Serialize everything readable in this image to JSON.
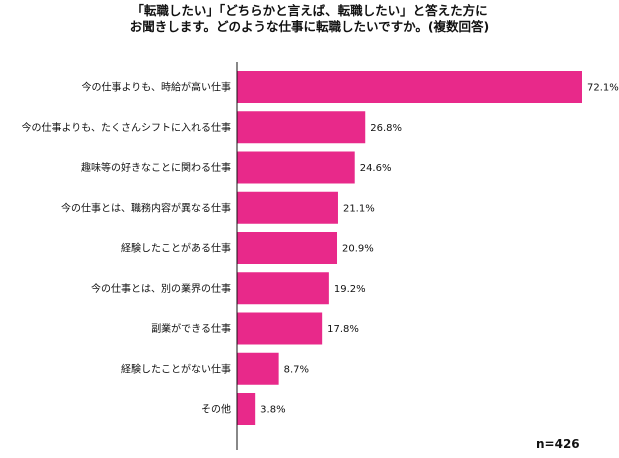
{
  "title_lines": [
    "「転職したい」「どちらかと言えば、転職したい」と答えた方に",
    "お聞きします。どのような仕事に転職したいですか。(複数回答)"
  ],
  "sample_note": "n=426",
  "colors": {
    "bar": "#e8298a",
    "axis": "#111111"
  },
  "chart_data": {
    "type": "bar",
    "orientation": "horizontal",
    "title": "「転職したい」「どちらかと言えば、転職したい」と答えた方にお聞きします。どのような仕事に転職したいですか。(複数回答)",
    "categories": [
      "今の仕事よりも、時給が高い仕事",
      "今の仕事よりも、たくさんシフトに入れる仕事",
      "趣味等の好きなことに関わる仕事",
      "今の仕事とは、職務内容が異なる仕事",
      "経験したことがある仕事",
      "今の仕事とは、別の業界の仕事",
      "副業ができる仕事",
      "経験したことがない仕事",
      "その他"
    ],
    "values": [
      72.1,
      26.8,
      24.6,
      21.1,
      20.9,
      19.2,
      17.8,
      8.7,
      3.8
    ],
    "value_labels": [
      "72.1%",
      "26.8%",
      "24.6%",
      "21.1%",
      "20.9%",
      "19.2%",
      "17.8%",
      "8.7%",
      "3.8%"
    ],
    "unit": "%",
    "xlim": [
      0,
      72.1
    ],
    "grid": false,
    "legend": "none"
  }
}
